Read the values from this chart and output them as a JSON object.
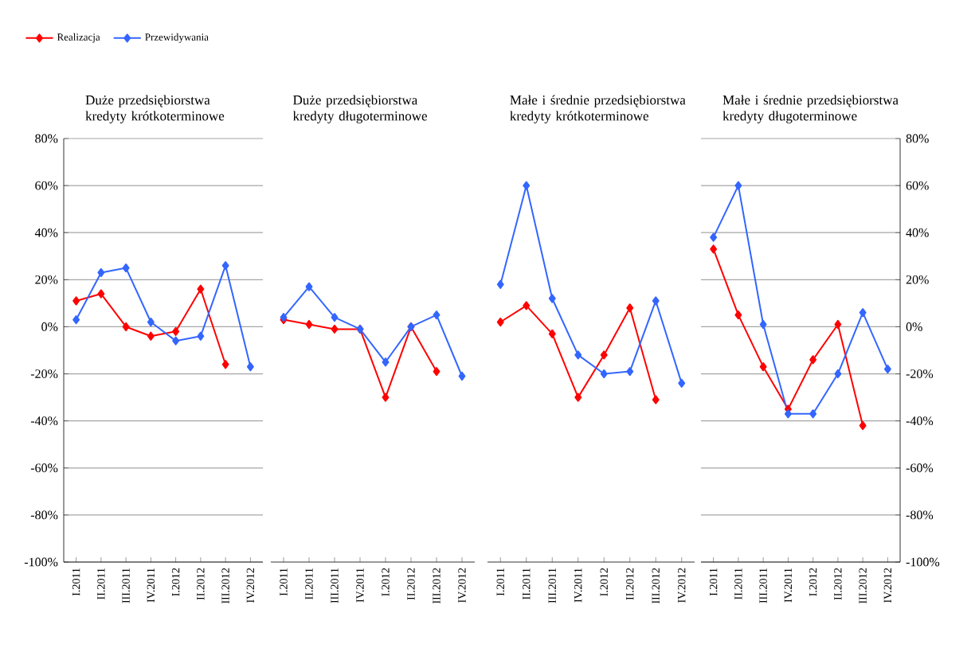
{
  "chart_data": [
    {
      "type": "line",
      "title": "Duże przedsiębiorstwa kredyty krótkoterminowe",
      "categories": [
        "I.2011",
        "II.2011",
        "III.2011",
        "IV.2011",
        "I.2012",
        "II.2012",
        "III.2012",
        "IV.2012"
      ],
      "series": [
        {
          "name": "Realizacja",
          "color": "#ff0000",
          "values": [
            11,
            14,
            0,
            -4,
            -2,
            16,
            -16,
            null
          ]
        },
        {
          "name": "Przewidywania",
          "color": "#3366ff",
          "values": [
            3,
            23,
            25,
            2,
            -6,
            -4,
            26,
            -17
          ]
        }
      ],
      "ylim": [
        -100,
        80
      ],
      "yticks": [
        {
          "value": -100,
          "label": "-100%"
        },
        {
          "value": -80,
          "label": "-80%"
        },
        {
          "value": -60,
          "label": "-60%"
        },
        {
          "value": -40,
          "label": "-40%"
        },
        {
          "value": -20,
          "label": "-20%"
        },
        {
          "value": 0,
          "label": "0%"
        },
        {
          "value": 20,
          "label": "20%"
        },
        {
          "value": 40,
          "label": "40%"
        },
        {
          "value": 60,
          "label": "60%"
        },
        {
          "value": 80,
          "label": "80%"
        }
      ],
      "grid": "y",
      "legend": "top left",
      "marker": "diamond"
    },
    {
      "type": "line",
      "title": "Duże przedsiębiorstwa kredyty długoterminowe",
      "categories": [
        "I.2011",
        "II.2011",
        "III.2011",
        "IV.2011",
        "I.2012",
        "II.2012",
        "III.2012",
        "IV.2012"
      ],
      "series": [
        {
          "color": "#ff0000",
          "values": [
            3,
            1,
            -1,
            -1,
            -30,
            0,
            -19,
            null
          ]
        },
        {
          "color": "#3366ff",
          "values": [
            4,
            17,
            4,
            -1,
            -15,
            0,
            5,
            -21
          ]
        }
      ],
      "ylim": [
        -100,
        80
      ],
      "grid": "y",
      "tick_labels": "x",
      "marker": "diamond"
    },
    {
      "type": "line",
      "title": "Małe i średnie  przedsiębiorstwa kredyty krótkoterminowe",
      "categories": [
        "I.2011",
        "II.2011",
        "III.2011",
        "IV.2011",
        "I.2012",
        "II.2012",
        "III.2012",
        "IV.2012"
      ],
      "series": [
        {
          "color": "#ff0000",
          "values": [
            2,
            9,
            -3,
            -30,
            -12,
            8,
            -31,
            null
          ]
        },
        {
          "color": "#3366ff",
          "values": [
            18,
            60,
            12,
            -12,
            -20,
            -19,
            11,
            -24
          ]
        }
      ],
      "ylim": [
        -100,
        80
      ],
      "grid": "y",
      "tick_labels": "x",
      "marker": "diamond"
    },
    {
      "type": "line",
      "title": "Małe i średnie  przedsiębiorstwa kredyty długoterminowe",
      "categories": [
        "I.2011",
        "II.2011",
        "III.2011",
        "IV.2011",
        "I.2012",
        "II.2012",
        "III.2012",
        "IV.2012"
      ],
      "series": [
        {
          "color": "#ff0000",
          "values": [
            33,
            5,
            -17,
            -35,
            -14,
            1,
            -42,
            null
          ]
        },
        {
          "color": "#3366ff",
          "values": [
            38,
            60,
            1,
            -37,
            -37,
            -20,
            6,
            -18
          ]
        }
      ],
      "ylim": [
        -100,
        80
      ],
      "yticks": [
        {
          "value": -100,
          "label": "-100%"
        },
        {
          "value": -80,
          "label": "-80%"
        },
        {
          "value": -60,
          "label": "-60%"
        },
        {
          "value": -40,
          "label": "-40%"
        },
        {
          "value": -20,
          "label": "-20%"
        },
        {
          "value": 0,
          "label": "0%"
        },
        {
          "value": 20,
          "label": "20%"
        },
        {
          "value": 40,
          "label": "40%"
        },
        {
          "value": 60,
          "label": "60%"
        },
        {
          "value": 80,
          "label": "80%"
        }
      ],
      "grid": "y",
      "marker": "diamond"
    }
  ]
}
